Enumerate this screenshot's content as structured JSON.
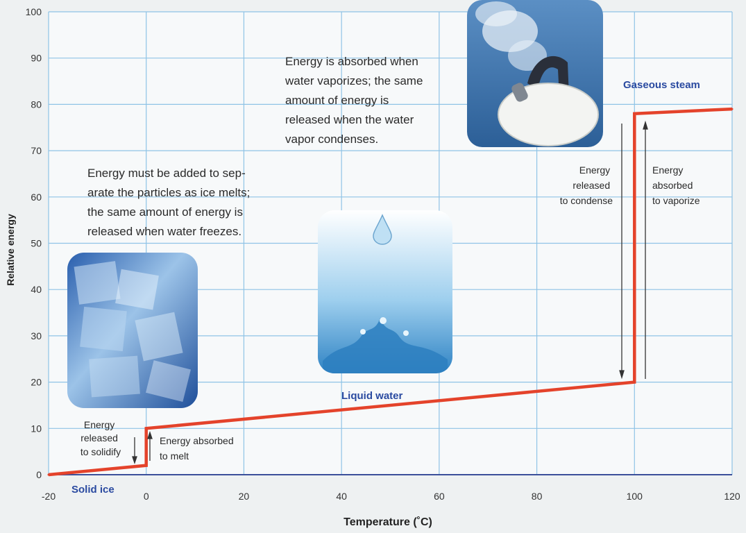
{
  "chart_data": {
    "type": "line",
    "xlabel": "Temperature (˚C)",
    "ylabel": "Relative energy",
    "xlim": [
      -20,
      120
    ],
    "ylim": [
      0,
      100
    ],
    "x_ticks": [
      "-20",
      "0",
      "20",
      "40",
      "60",
      "80",
      "100",
      "120"
    ],
    "y_ticks": [
      "0",
      "10",
      "20",
      "30",
      "40",
      "50",
      "60",
      "70",
      "80",
      "90",
      "100"
    ],
    "grid": true,
    "series": [
      {
        "color": "#e4432b",
        "points": [
          {
            "x": -20,
            "y": 0
          },
          {
            "x": 0,
            "y": 2
          },
          {
            "x": 0,
            "y": 10
          },
          {
            "x": 100,
            "y": 20
          },
          {
            "x": 100,
            "y": 78
          },
          {
            "x": 120,
            "y": 79
          }
        ]
      }
    ],
    "phase_labels": {
      "solid": "Solid ice",
      "liquid": "Liquid water",
      "gas": "Gaseous steam"
    },
    "annotations": {
      "vaporize": [
        "Energy is absorbed when",
        "water vaporizes; the same",
        "amount of energy is",
        "released when the water",
        "vapor condenses."
      ],
      "melt": [
        "Energy must be added to sep-",
        "arate the particles as ice melts;",
        "the same amount of energy is",
        "released when water freezes."
      ],
      "released_condense": [
        "Energy",
        "released",
        "to condense"
      ],
      "absorbed_vaporize": [
        "Energy",
        "absorbed",
        "to vaporize"
      ],
      "released_solidify": [
        "Energy",
        "released",
        "to solidify"
      ],
      "absorbed_melt": [
        "Energy absorbed",
        "to melt"
      ]
    },
    "colors": {
      "line": "#e4432b",
      "grid": "#8fc3e6",
      "phase_label": "#2a4aa0"
    }
  }
}
